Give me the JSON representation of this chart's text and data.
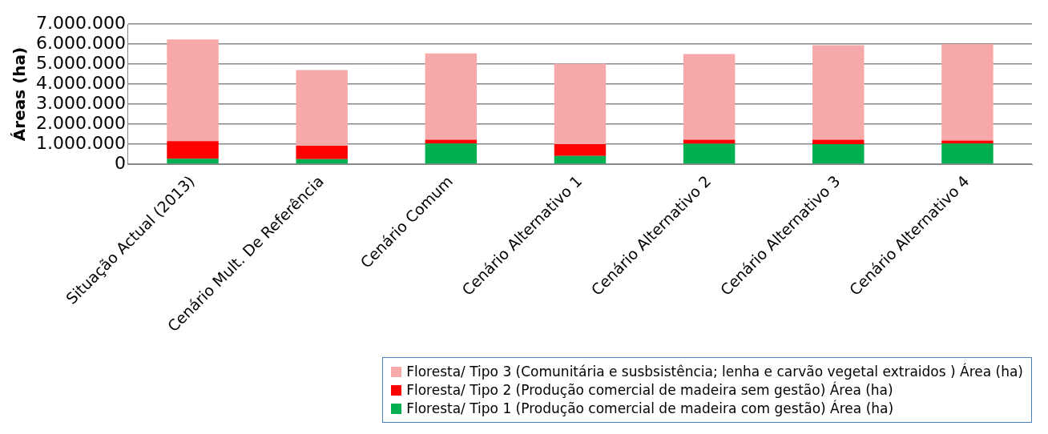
{
  "chart_data": {
    "type": "bar",
    "stacked": true,
    "ylabel": "Áreas (ha)",
    "categories": [
      "Situação Actual (2013)",
      "Cenário Mult. De Referência",
      "Cenário Comum",
      "Cenário Alternativo 1",
      "Cenário Alternativo 2",
      "Cenário Alternativo 3",
      "Cenário Alternativo 4"
    ],
    "series": [
      {
        "name": "Floresta/  Tipo 1 (Produção comercial de madeira com gestão) Área (ha)",
        "color": "#00b050",
        "values": [
          270000,
          250000,
          1030000,
          410000,
          1020000,
          1000000,
          1030000
        ]
      },
      {
        "name": "Floresta/  Tipo 2 (Produção comercial de madeira sem gestão) Área (ha)",
        "color": "#ff0000",
        "values": [
          880000,
          670000,
          190000,
          590000,
          200000,
          220000,
          150000
        ]
      },
      {
        "name": "Floresta/ Tipo 3 (Comunitária e susbsistência; lenha e carvão vegetal extraidos ) Área (ha)",
        "color": "#f7a8a8",
        "values": [
          5080000,
          3780000,
          4310000,
          4020000,
          4280000,
          4720000,
          4820000
        ]
      }
    ],
    "ylim": [
      0,
      7000000
    ],
    "yticks": [
      0,
      {
        "value": 1000000,
        "label": "1.000.000"
      },
      {
        "value": 2000000,
        "label": "2.000.000"
      },
      {
        "value": 3000000,
        "label": "3.000.000"
      },
      {
        "value": 4000000,
        "label": "4.000.000"
      },
      {
        "value": 5000000,
        "label": "5.000.000"
      },
      {
        "value": 6000000,
        "label": "6.000.000"
      },
      {
        "value": 7000000,
        "label": "7.000.000"
      }
    ],
    "grid": "y",
    "legend": "bottom right"
  }
}
